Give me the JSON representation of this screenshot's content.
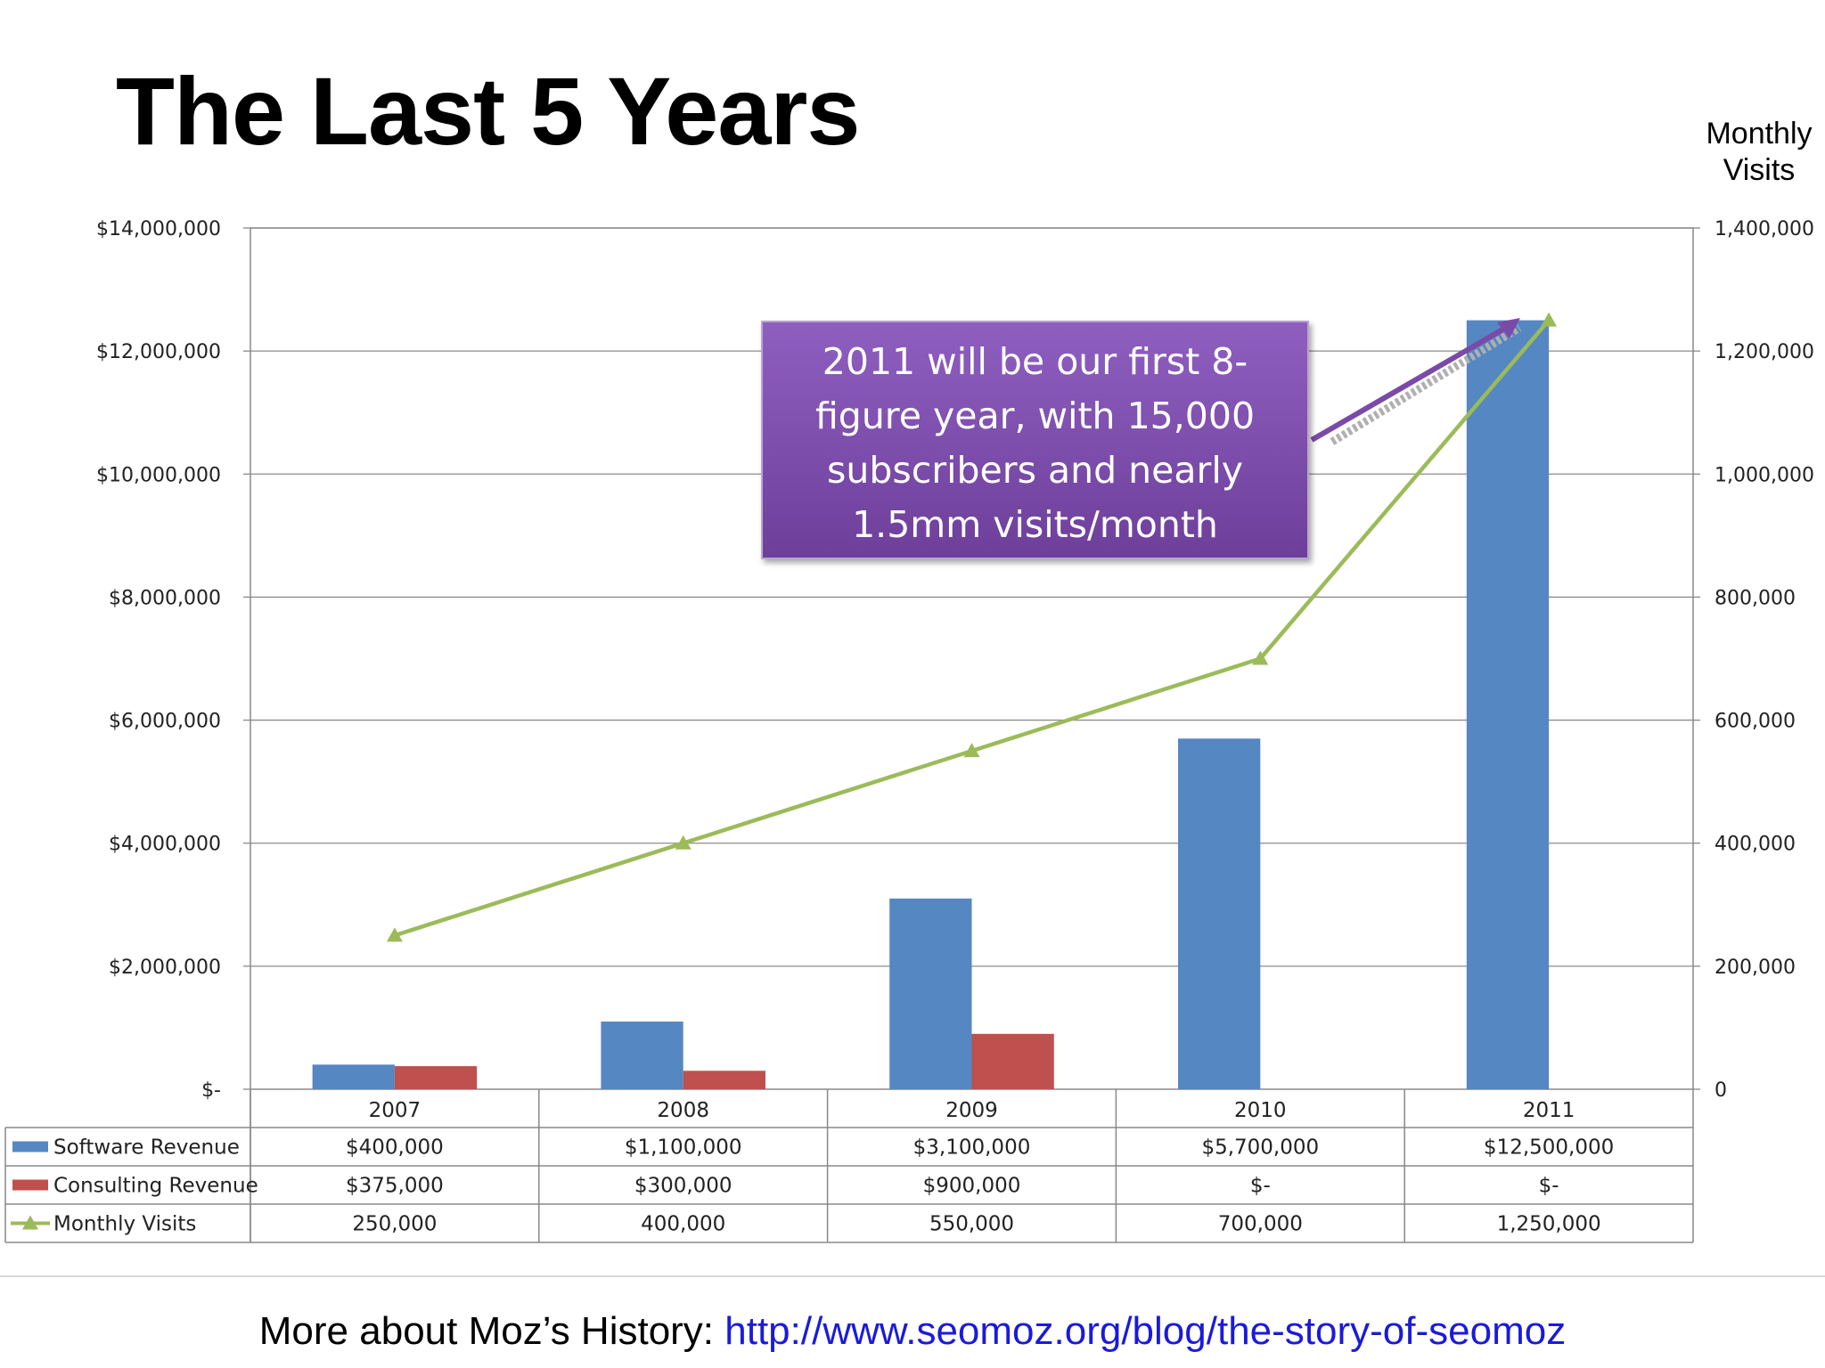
{
  "slide": {
    "title": "The Last 5 Years",
    "right_axis_title_line1": "Monthly",
    "right_axis_title_line2": "Visits",
    "callout_lines": [
      "2011 will be our first 8-",
      "figure year, with 15,000",
      "subscribers and nearly",
      "1.5mm visits/month"
    ],
    "footer_prefix": "More about Moz’s History: ",
    "footer_link": "http://www.seomoz.org/blog/the-story-of-seomoz"
  },
  "colors": {
    "software": "#5587c2",
    "consulting": "#c0504d",
    "visits": "#9bbb59",
    "callout": "#7a4aa8",
    "link": "#1a1adc"
  },
  "chart_data": {
    "type": "bar",
    "categories": [
      "2007",
      "2008",
      "2009",
      "2010",
      "2011"
    ],
    "series": [
      {
        "name": "Software Revenue",
        "kind": "bar",
        "axis": "left",
        "values": [
          400000,
          1100000,
          3100000,
          5700000,
          12500000
        ]
      },
      {
        "name": "Consulting Revenue",
        "kind": "bar",
        "axis": "left",
        "values": [
          375000,
          300000,
          900000,
          0,
          0
        ]
      },
      {
        "name": "Monthly Visits",
        "kind": "line",
        "axis": "right",
        "values": [
          250000,
          400000,
          550000,
          700000,
          1250000
        ]
      }
    ],
    "left_ylim": [
      0,
      14000000
    ],
    "right_ylim": [
      0,
      1400000
    ],
    "left_tick_labels": [
      "$-",
      "$2,000,000",
      "$4,000,000",
      "$6,000,000",
      "$8,000,000",
      "$10,000,000",
      "$12,000,000",
      "$14,000,000"
    ],
    "right_tick_labels": [
      "0",
      "200,000",
      "400,000",
      "600,000",
      "800,000",
      "1,000,000",
      "1,200,000",
      "1,400,000"
    ],
    "data_table": [
      {
        "label": "Software Revenue",
        "cells": [
          "$400,000",
          "$1,100,000",
          "$3,100,000",
          "$5,700,000",
          "$12,500,000"
        ]
      },
      {
        "label": "Consulting Revenue",
        "cells": [
          "$375,000",
          "$300,000",
          "$900,000",
          "$-",
          "$-"
        ]
      },
      {
        "label": "Monthly Visits",
        "cells": [
          "250,000",
          "400,000",
          "550,000",
          "700,000",
          "1,250,000"
        ]
      }
    ],
    "grid": true,
    "legend": "data table"
  }
}
